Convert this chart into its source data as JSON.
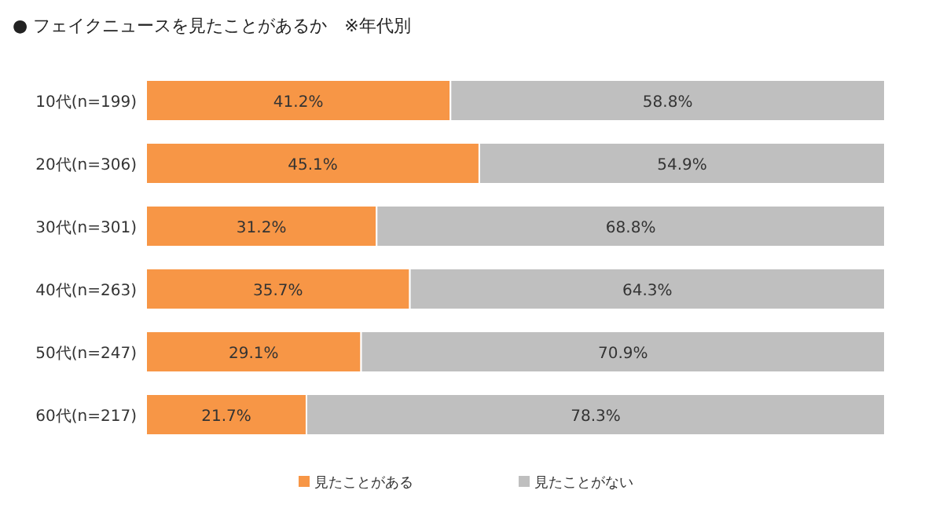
{
  "chart_data": {
    "type": "bar",
    "orientation": "horizontal",
    "stacked": true,
    "title": "● フェイクニュースを見たことがあるか　※年代別",
    "categories": [
      "10代(n=199)",
      "20代(n=306)",
      "30代(n=301)",
      "40代(n=263)",
      "50代(n=247)",
      "60代(n=217)"
    ],
    "series": [
      {
        "name": "見たことがある",
        "color": "#f79646",
        "values": [
          41.2,
          45.1,
          31.2,
          35.7,
          29.1,
          21.7
        ],
        "value_labels": [
          "41.2%",
          "45.1%",
          "31.2%",
          "35.7%",
          "29.1%",
          "21.7%"
        ]
      },
      {
        "name": "見たことがない",
        "color": "#bfbfbf",
        "values": [
          58.8,
          54.9,
          68.8,
          64.3,
          70.9,
          78.3
        ],
        "value_labels": [
          "58.8%",
          "54.9%",
          "68.8%",
          "64.3%",
          "70.9%",
          "78.3%"
        ]
      }
    ],
    "legend": "bottom"
  }
}
